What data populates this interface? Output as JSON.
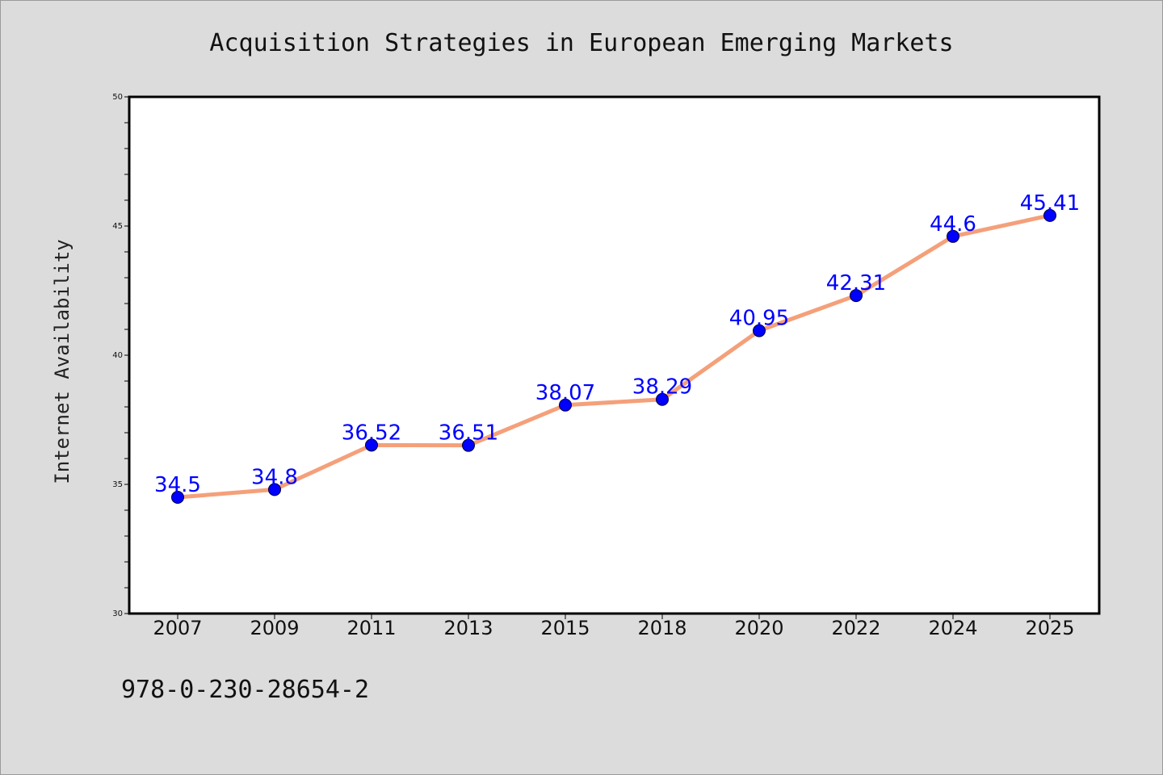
{
  "chart_data": {
    "type": "line",
    "title": "Acquisition Strategies in European Emerging Markets",
    "ylabel": "Internet Availability",
    "xlabel": "",
    "categories": [
      "2007",
      "2009",
      "2011",
      "2013",
      "2015",
      "2018",
      "2020",
      "2022",
      "2024",
      "2025"
    ],
    "values": [
      34.5,
      34.8,
      36.52,
      36.51,
      38.07,
      38.29,
      40.95,
      42.31,
      44.6,
      45.41
    ],
    "data_labels": [
      "34.5",
      "34.8",
      "36.52",
      "36.51",
      "38.07",
      "38.29",
      "40.95",
      "42.31",
      "44.6",
      "45.41"
    ],
    "ylim": [
      30,
      50
    ],
    "yticks": [
      "30",
      "35",
      "40",
      "45",
      "50"
    ],
    "grid": false,
    "legend": "none",
    "colors": {
      "line": "#f4a07a",
      "marker": "#0000ff",
      "label": "#0000ff",
      "background": "#dcdcdc",
      "plot_background": "#ffffff"
    }
  },
  "footer": {
    "code": "978-0-230-28654-2"
  }
}
